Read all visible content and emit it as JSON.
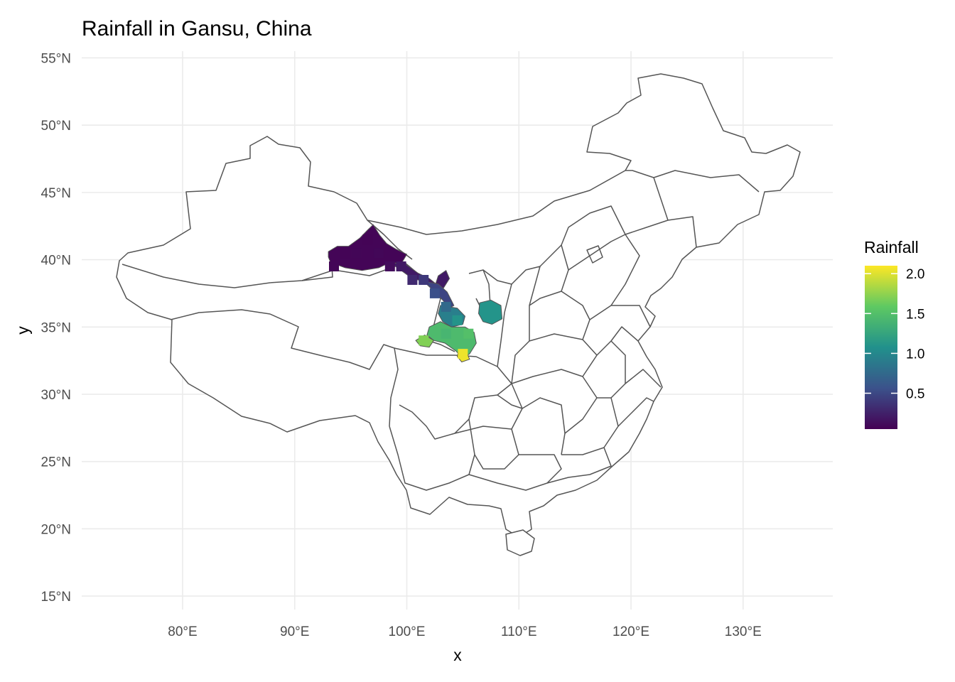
{
  "title": "Rainfall in Gansu, China",
  "map": {
    "x_axis_label": "x",
    "y_axis_label": "y",
    "lon_ticks": [
      "80°E",
      "90°E",
      "100°E",
      "110°E",
      "120°E",
      "130°E"
    ],
    "lat_ticks": [
      "55°N",
      "50°N",
      "45°N",
      "40°N",
      "35°N",
      "30°N",
      "25°N",
      "20°N",
      "15°N"
    ],
    "lon_range": [
      71,
      138
    ],
    "lat_range": [
      14,
      55.5
    ],
    "outline_color": "#555555",
    "grid_color": "#ebebeb"
  },
  "legend": {
    "title": "Rainfall",
    "placement": "right",
    "ticks": [
      "2.0",
      "1.5",
      "1.0",
      "0.5"
    ],
    "colors": [
      "#440154",
      "#3b528b",
      "#21918c",
      "#5ec962",
      "#fde725"
    ]
  },
  "chart_data": {
    "type": "heatmap",
    "title": "Rainfall in Gansu, China",
    "xlabel": "x",
    "ylabel": "y",
    "xlim": [
      71,
      138
    ],
    "ylim": [
      14,
      55.5
    ],
    "value_range": [
      0.05,
      2.1
    ],
    "region": "Gansu",
    "cells": [
      {
        "lon": 93.5,
        "lat": 39.5,
        "value": 0.08
      },
      {
        "lon": 94.5,
        "lat": 40.5,
        "value": 0.07
      },
      {
        "lon": 95.5,
        "lat": 40.5,
        "value": 0.08
      },
      {
        "lon": 96.5,
        "lat": 41.5,
        "value": 0.07
      },
      {
        "lon": 97.5,
        "lat": 40.5,
        "value": 0.09
      },
      {
        "lon": 98.5,
        "lat": 39.5,
        "value": 0.12
      },
      {
        "lon": 99.5,
        "lat": 39.5,
        "value": 0.2
      },
      {
        "lon": 100.5,
        "lat": 38.5,
        "value": 0.3
      },
      {
        "lon": 101.5,
        "lat": 38.5,
        "value": 0.4
      },
      {
        "lon": 102.5,
        "lat": 37.5,
        "value": 0.55
      },
      {
        "lon": 103.5,
        "lat": 36.5,
        "value": 0.75
      },
      {
        "lon": 104.5,
        "lat": 35.5,
        "value": 1.1
      },
      {
        "lon": 103.5,
        "lat": 34.5,
        "value": 1.4
      },
      {
        "lon": 105.5,
        "lat": 34.5,
        "value": 1.5
      },
      {
        "lon": 107.5,
        "lat": 36.0,
        "value": 1.1
      },
      {
        "lon": 101.5,
        "lat": 34.0,
        "value": 1.7
      },
      {
        "lon": 105.0,
        "lat": 33.0,
        "value": 2.05
      }
    ]
  }
}
